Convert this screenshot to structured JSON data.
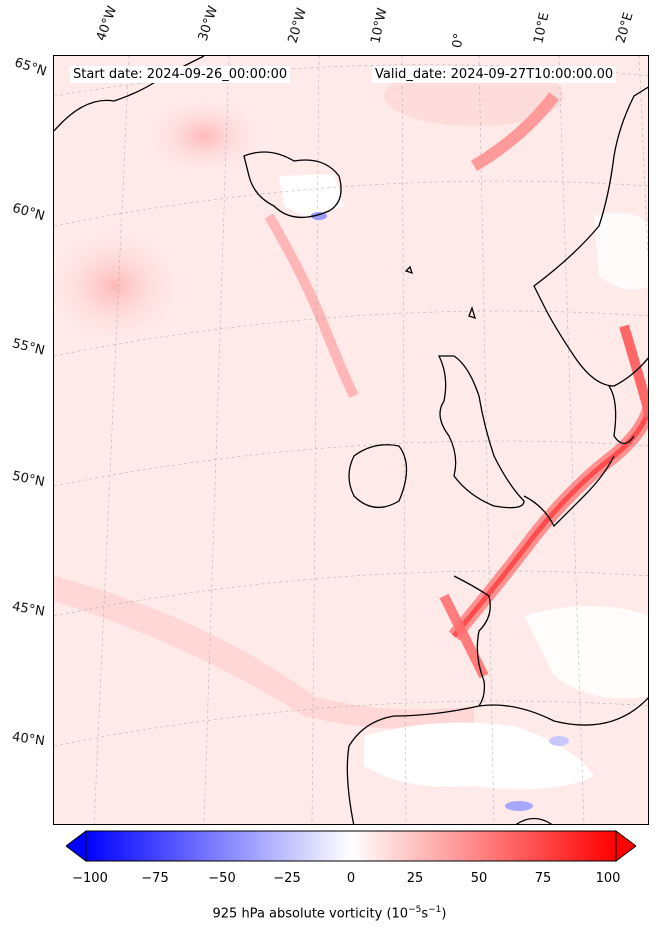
{
  "map": {
    "start_date": "Start date: 2024-09-26_00:00:00",
    "valid_date": "Valid_date: 2024-09-27T10:00:00.00",
    "lon_labels": [
      "40°W",
      "30°W",
      "20°W",
      "10°W",
      "0°",
      "10°E",
      "20°E"
    ],
    "lat_labels": [
      "65°N",
      "60°N",
      "55°N",
      "50°N",
      "45°N",
      "40°N"
    ],
    "projection": "Lambert conformal",
    "gridlines": true,
    "colormap": "bwr",
    "colors": {
      "negative": "#0000ff",
      "zero": "#ffffff",
      "positive": "#ff0000",
      "coastline": "#000000"
    }
  },
  "colorbar": {
    "label_main": "925 hPa absolute vorticity (10",
    "label_exp1": "−5",
    "label_mid": "s",
    "label_exp2": "−1",
    "label_end": ")",
    "ticks": [
      "−100",
      "−75",
      "−50",
      "−25",
      "0",
      "25",
      "50",
      "75",
      "100"
    ],
    "min": -100,
    "max": 100,
    "extend": "both"
  }
}
